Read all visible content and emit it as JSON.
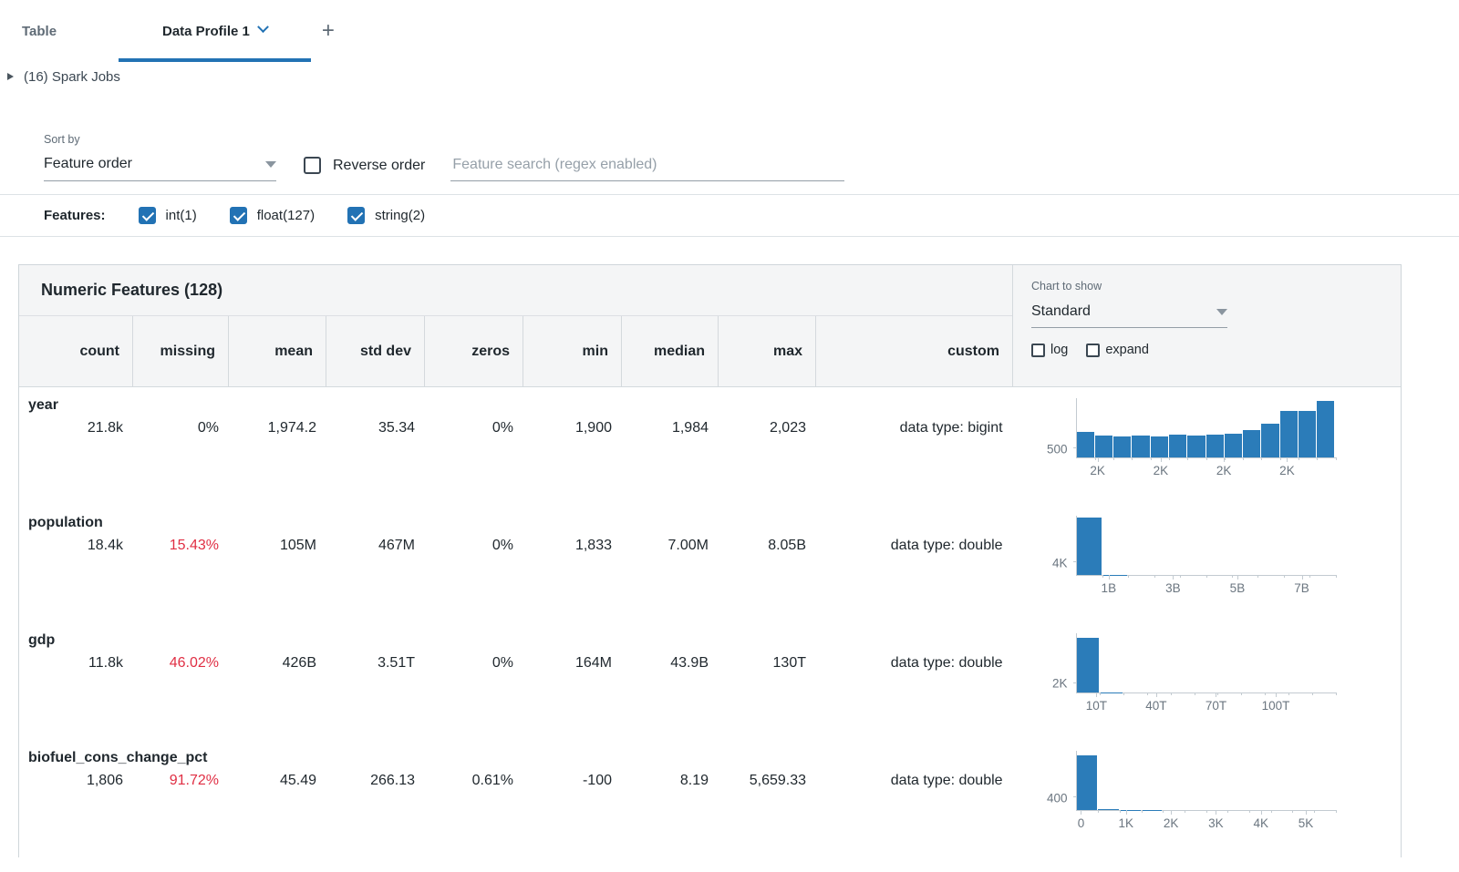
{
  "colors": {
    "accent": "#2272b4",
    "bar": "#2b7cb9",
    "red": "#e02f44"
  },
  "tabs": {
    "table": "Table",
    "profile": "Data Profile 1",
    "add": "+"
  },
  "spark_jobs_label": "(16) Spark Jobs",
  "sort": {
    "label": "Sort by",
    "value": "Feature order"
  },
  "reverse_order_label": "Reverse order",
  "reverse_order_checked": false,
  "search_placeholder": "Feature search (regex enabled)",
  "features_bar": {
    "label": "Features:",
    "items": [
      {
        "label": "int(1)",
        "checked": true
      },
      {
        "label": "float(127)",
        "checked": true
      },
      {
        "label": "string(2)",
        "checked": true
      }
    ]
  },
  "table": {
    "title": "Numeric Features (128)",
    "columns": [
      "count",
      "missing",
      "mean",
      "std dev",
      "zeros",
      "min",
      "median",
      "max",
      "custom"
    ],
    "rows": [
      {
        "name": "year",
        "count": "21.8k",
        "missing": "0%",
        "missing_alert": false,
        "mean": "1,974.2",
        "std_dev": "35.34",
        "zeros": "0%",
        "min": "1,900",
        "median": "1,984",
        "max": "2,023",
        "custom": "data type: bigint"
      },
      {
        "name": "population",
        "count": "18.4k",
        "missing": "15.43%",
        "missing_alert": true,
        "mean": "105M",
        "std_dev": "467M",
        "zeros": "0%",
        "min": "1,833",
        "median": "7.00M",
        "max": "8.05B",
        "custom": "data type: double"
      },
      {
        "name": "gdp",
        "count": "11.8k",
        "missing": "46.02%",
        "missing_alert": true,
        "mean": "426B",
        "std_dev": "3.51T",
        "zeros": "0%",
        "min": "164M",
        "median": "43.9B",
        "max": "130T",
        "custom": "data type: double"
      },
      {
        "name": "biofuel_cons_change_pct",
        "count": "1,806",
        "missing": "91.72%",
        "missing_alert": true,
        "mean": "45.49",
        "std_dev": "266.13",
        "zeros": "0.61%",
        "min": "-100",
        "median": "8.19",
        "max": "5,659.33",
        "custom": "data type: double"
      }
    ]
  },
  "chart_panel": {
    "label": "Chart to show",
    "value": "Standard",
    "log_label": "log",
    "log_checked": false,
    "expand_label": "expand",
    "expand_checked": false
  },
  "chart_data": [
    {
      "type": "bar",
      "feature": "year",
      "title": "year histogram",
      "xmin": 1900,
      "xmax": 2023,
      "ymax": 3300,
      "values": [
        1400,
        1200,
        1150,
        1200,
        1150,
        1250,
        1200,
        1250,
        1300,
        1500,
        1900,
        2600,
        2600,
        3150
      ],
      "ytick": {
        "value": 500,
        "label": "500"
      },
      "xticks": [
        {
          "value": 1910,
          "label": "2K"
        },
        {
          "value": 1940,
          "label": "2K"
        },
        {
          "value": 1970,
          "label": "2K"
        },
        {
          "value": 2000,
          "label": "2K"
        }
      ]
    },
    {
      "type": "bar",
      "feature": "population",
      "title": "population histogram",
      "xmin": 0,
      "xmax": 8050000000,
      "ymax": 19000,
      "values": [
        18300,
        60,
        20,
        10,
        6,
        4,
        3,
        2,
        1,
        1
      ],
      "ytick": {
        "value": 4000,
        "label": "4K"
      },
      "xticks": [
        {
          "value": 1000000000,
          "label": "1B"
        },
        {
          "value": 3000000000,
          "label": "3B"
        },
        {
          "value": 5000000000,
          "label": "5B"
        },
        {
          "value": 7000000000,
          "label": "7B"
        }
      ]
    },
    {
      "type": "bar",
      "feature": "gdp",
      "title": "gdp histogram",
      "xmin": 0,
      "xmax": 130000000000000,
      "ymax": 12500,
      "values": [
        11600,
        50,
        15,
        8,
        5,
        4,
        3,
        2,
        1,
        1,
        1
      ],
      "ytick": {
        "value": 2000,
        "label": "2K"
      },
      "xticks": [
        {
          "value": 10000000000000,
          "label": "10T"
        },
        {
          "value": 40000000000000,
          "label": "40T"
        },
        {
          "value": 70000000000000,
          "label": "70T"
        },
        {
          "value": 100000000000000,
          "label": "100T"
        }
      ]
    },
    {
      "type": "bar",
      "feature": "biofuel_cons_change_pct",
      "title": "biofuel_cons_change_pct histogram",
      "xmin": -100,
      "xmax": 5659.33,
      "ymax": 1900,
      "values": [
        1750,
        25,
        8,
        4,
        2,
        1,
        1,
        1,
        0,
        0,
        0,
        1
      ],
      "ytick": {
        "value": 400,
        "label": "400"
      },
      "xticks": [
        {
          "value": 0,
          "label": "0"
        },
        {
          "value": 1000,
          "label": "1K"
        },
        {
          "value": 2000,
          "label": "2K"
        },
        {
          "value": 3000,
          "label": "3K"
        },
        {
          "value": 4000,
          "label": "4K"
        },
        {
          "value": 5000,
          "label": "5K"
        }
      ]
    }
  ]
}
